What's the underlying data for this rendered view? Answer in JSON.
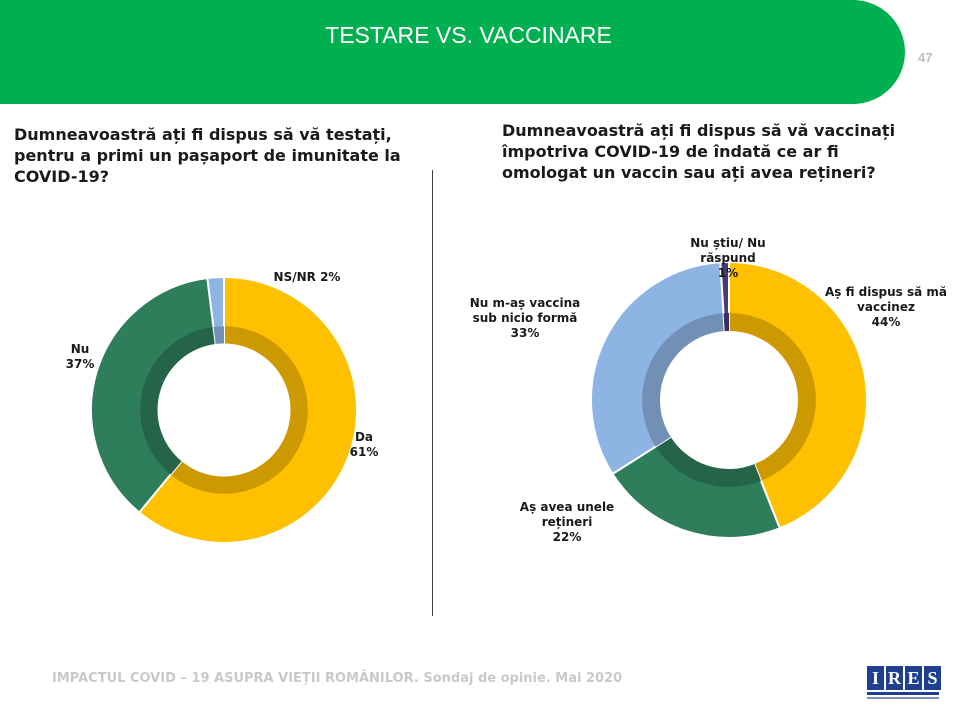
{
  "header": {
    "title": "TESTARE VS. VACCINARE",
    "page_number": "47"
  },
  "footer": {
    "text": "IMPACTUL COVID – 19 ASUPRA VIEȚII ROMÂNILOR. Sondaj de opinie. Mai 2020"
  },
  "logo": {
    "letters": [
      "I",
      "R",
      "E",
      "S"
    ]
  },
  "colors": {
    "banner": "#00b050",
    "yellow": "#ffc000",
    "green": "#2e7d5b",
    "light_blue": "#8eb4e3",
    "purple": "#4b3a7a"
  },
  "chart_data": [
    {
      "type": "pie",
      "title": "Dumneavoastră ați fi dispus să vă testați, pentru a primi un pașaport de imunitate la COVID-19?",
      "labels": [
        {
          "name": "Da",
          "pct": "61%"
        },
        {
          "name": "Nu",
          "pct": "37%"
        },
        {
          "name": "NS/NR 2%",
          "pct": ""
        }
      ],
      "slices": [
        {
          "label": "Da",
          "value": 61,
          "color": "#ffc000"
        },
        {
          "label": "Nu",
          "value": 37,
          "color": "#2e7d5b"
        },
        {
          "label": "NS/NR",
          "value": 2,
          "color": "#8eb4e3"
        }
      ]
    },
    {
      "type": "pie",
      "title": "Dumneavoastră ați fi dispus să vă vaccinați împotriva COVID-19 de îndată ce ar fi omologat un vaccin sau ați avea rețineri?",
      "labels": [
        {
          "name": "Aș fi dispus să mă vaccinez",
          "pct": "44%"
        },
        {
          "name": "Aș avea unele rețineri",
          "pct": "22%"
        },
        {
          "name": "Nu m-aș vaccina sub nicio formă",
          "pct": "33%"
        },
        {
          "name": "Nu știu/ Nu răspund",
          "pct": "1%"
        }
      ],
      "slices": [
        {
          "label": "Aș fi dispus să mă vaccinez",
          "value": 44,
          "color": "#ffc000"
        },
        {
          "label": "Aș avea unele rețineri",
          "value": 22,
          "color": "#2e7d5b"
        },
        {
          "label": "Nu m-aș vaccina sub nicio formă",
          "value": 33,
          "color": "#8eb4e3"
        },
        {
          "label": "Nu știu/ Nu răspund",
          "value": 1,
          "color": "#4b3a7a"
        }
      ]
    }
  ]
}
